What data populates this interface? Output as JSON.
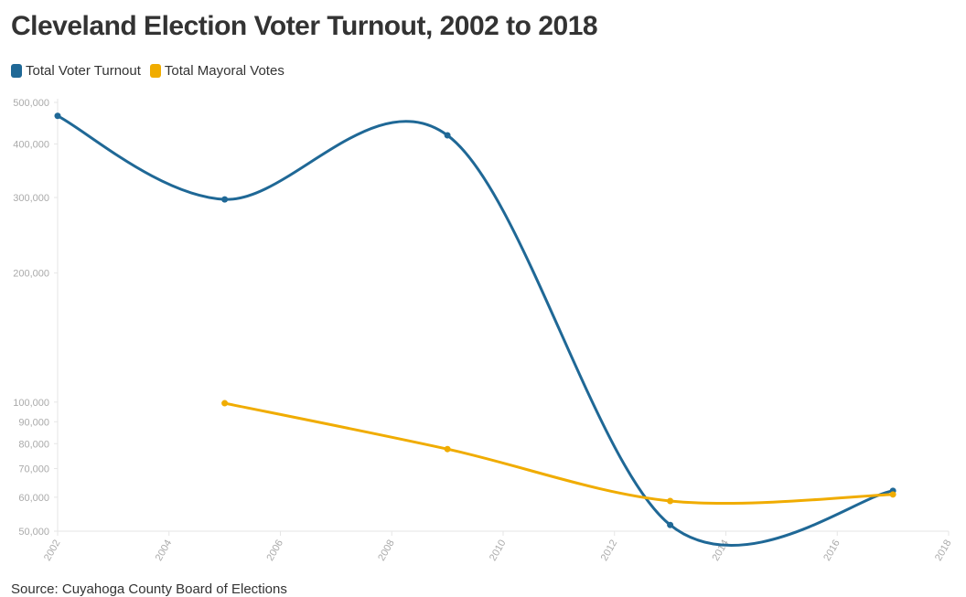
{
  "title": "Cleveland Election Voter Turnout, 2002 to 2018",
  "source": "Source: Cuyahoga County Board of Elections",
  "chart_data": {
    "type": "line",
    "title": "Cleveland Election Voter Turnout, 2002 to 2018",
    "xlabel": "",
    "ylabel": "",
    "xlim": [
      2002,
      2018
    ],
    "ylim": [
      50000,
      500000
    ],
    "y_scale": "log",
    "smoothed": true,
    "grid": false,
    "legend_position": "top-left",
    "x_ticks": [
      "2002",
      "2004",
      "2006",
      "2008",
      "2010",
      "2012",
      "2014",
      "2016",
      "2018"
    ],
    "y_ticks": [
      {
        "value": 50000,
        "label": "50,000"
      },
      {
        "value": 60000,
        "label": "60,000"
      },
      {
        "value": 70000,
        "label": "70,000"
      },
      {
        "value": 80000,
        "label": "80,000"
      },
      {
        "value": 90000,
        "label": "90,000"
      },
      {
        "value": 100000,
        "label": "100,000"
      },
      {
        "value": 200000,
        "label": "200,000"
      },
      {
        "value": 300000,
        "label": "300,000"
      },
      {
        "value": 400000,
        "label": "400,000"
      },
      {
        "value": 500000,
        "label": "500,000"
      }
    ],
    "series": [
      {
        "name": "Total Voter Turnout",
        "color": "#1f6896",
        "x": [
          2002,
          2005,
          2009,
          2013,
          2017
        ],
        "values": [
          465000,
          297000,
          419000,
          51700,
          62100
        ]
      },
      {
        "name": "Total Mayoral Votes",
        "color": "#f0ac00",
        "x": [
          2005,
          2009,
          2013,
          2017
        ],
        "values": [
          99400,
          77700,
          58800,
          60900
        ]
      }
    ]
  }
}
